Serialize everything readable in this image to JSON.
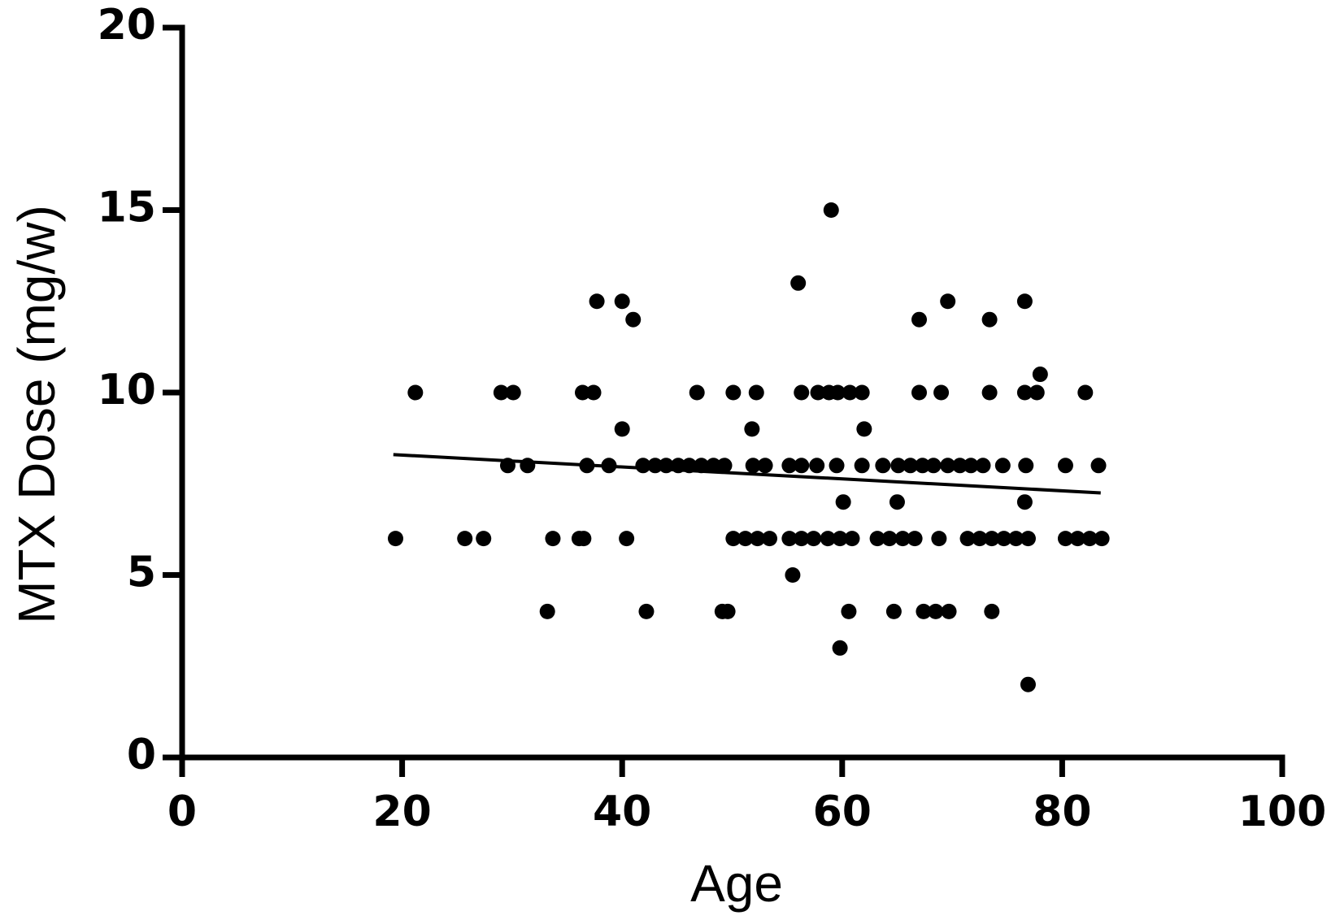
{
  "chart_data": {
    "type": "scatter",
    "x_label": "Age",
    "y_label": "MTX Dose (mg/w)",
    "xlim": [
      0,
      100
    ],
    "ylim": [
      0,
      20
    ],
    "xticks": [
      0,
      20,
      40,
      60,
      80,
      100
    ],
    "yticks": [
      0,
      5,
      10,
      15,
      20
    ],
    "color": "#000000",
    "x": [
      19.4,
      25.7,
      27.4,
      33.7,
      36.1,
      36.5,
      40.4,
      50.1,
      51.2,
      52.3,
      53.4,
      55.2,
      56.3,
      57.4,
      58.7,
      59.8,
      60.9,
      63.2,
      64.3,
      65.5,
      66.6,
      68.8,
      71.4,
      72.5,
      73.6,
      74.7,
      75.8,
      76.9,
      80.3,
      81.4,
      82.5,
      83.6,
      29.6,
      31.4,
      36.8,
      38.8,
      41.9,
      43.0,
      44.0,
      45.1,
      46.1,
      47.2,
      48.3,
      49.3,
      51.9,
      53.0,
      55.2,
      56.3,
      57.7,
      59.5,
      61.8,
      63.7,
      65.1,
      66.2,
      67.3,
      68.3,
      69.6,
      70.7,
      71.7,
      72.8,
      74.6,
      76.7,
      80.3,
      83.3,
      21.2,
      29.0,
      30.1,
      36.4,
      37.4,
      46.8,
      50.1,
      52.2,
      56.3,
      57.8,
      58.8,
      59.6,
      60.7,
      61.8,
      67.0,
      69.0,
      73.4,
      76.6,
      77.7,
      82.1,
      33.2,
      42.2,
      49.1,
      49.6,
      60.6,
      64.7,
      67.4,
      68.5,
      69.7,
      73.6,
      37.7,
      40.0,
      41.0,
      40.0,
      51.8,
      62.0,
      59.0,
      56.0,
      67.0,
      69.6,
      73.4,
      76.6,
      78.0,
      55.5,
      59.8,
      60.1,
      65.0,
      76.6,
      76.9
    ],
    "y": [
      6,
      6,
      6,
      6,
      6,
      6,
      6,
      6,
      6,
      6,
      6,
      6,
      6,
      6,
      6,
      6,
      6,
      6,
      6,
      6,
      6,
      6,
      6,
      6,
      6,
      6,
      6,
      6,
      6,
      6,
      6,
      6,
      8,
      8,
      8,
      8,
      8,
      8,
      8,
      8,
      8,
      8,
      8,
      8,
      8,
      8,
      8,
      8,
      8,
      8,
      8,
      8,
      8,
      8,
      8,
      8,
      8,
      8,
      8,
      8,
      8,
      8,
      8,
      8,
      10,
      10,
      10,
      10,
      10,
      10,
      10,
      10,
      10,
      10,
      10,
      10,
      10,
      10,
      10,
      10,
      10,
      10,
      10,
      10,
      4,
      4,
      4,
      4,
      4,
      4,
      4,
      4,
      4,
      4,
      12.5,
      12.5,
      12,
      9,
      9,
      9,
      15,
      13,
      12,
      12.5,
      12,
      12.5,
      10.5,
      5,
      3,
      7,
      7,
      7,
      2
    ],
    "trendline": {
      "x": [
        19.2,
        83.5
      ],
      "y": [
        8.3,
        7.25
      ]
    }
  }
}
